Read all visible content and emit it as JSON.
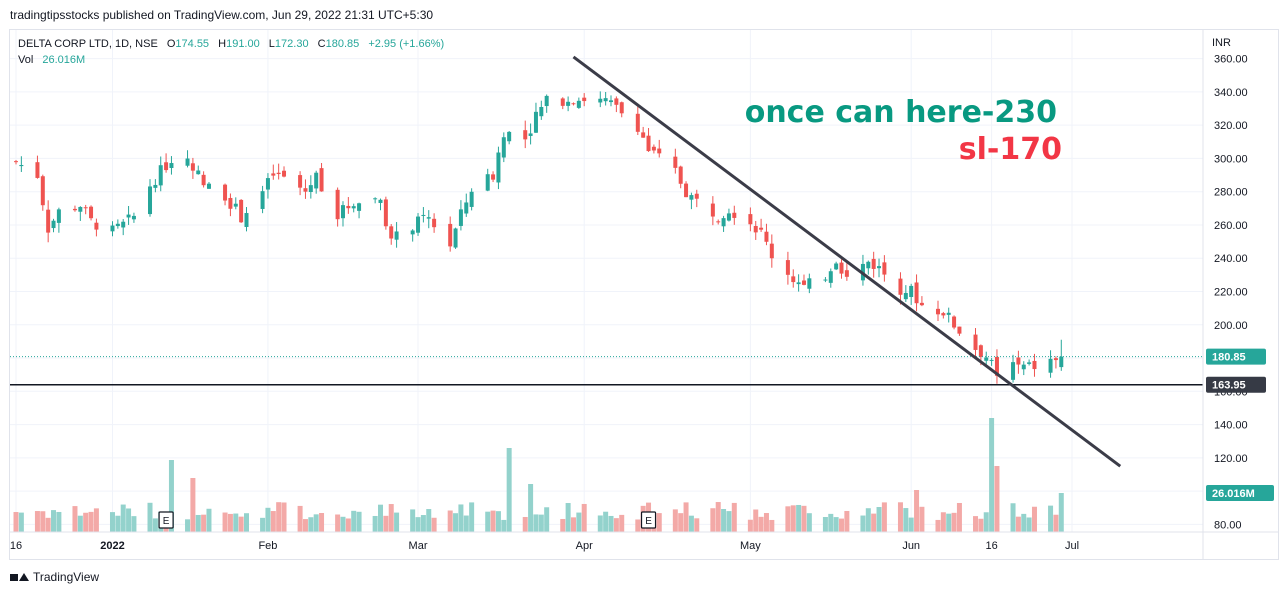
{
  "header": {
    "publisher_line": "tradingtipsstocks published on TradingView.com, Jun 29, 2022 21:31 UTC+5:30"
  },
  "legend": {
    "symbol": "DELTA CORP LTD, 1D, NSE",
    "o_label": "O",
    "o_value": "174.55",
    "h_label": "H",
    "h_value": "191.00",
    "l_label": "L",
    "l_value": "172.30",
    "c_label": "C",
    "c_value": "180.85",
    "change": "+2.95 (+1.66%)",
    "vol_label": "Vol",
    "vol_value": "26.016M"
  },
  "annotations": {
    "line1": "once can here-230",
    "line2": "sl-170"
  },
  "footer": {
    "brand": "TradingView"
  },
  "colors": {
    "up": "#26a69a",
    "down": "#ef5350",
    "vol_up": "#93d2cc",
    "vol_down": "#f3a9a7",
    "trendline": "#3b3c48",
    "support": "#131722",
    "grid": "#f0f3fa"
  },
  "chart_data": {
    "type": "candlestick",
    "currency": "INR",
    "y_ticks": [
      "80.00",
      "100.00",
      "120.00",
      "140.00",
      "160.00",
      "180.00",
      "200.00",
      "220.00",
      "240.00",
      "260.00",
      "280.00",
      "300.00",
      "320.00",
      "340.00",
      "360.00"
    ],
    "x_ticks": [
      "16",
      "2022",
      "Feb",
      "Mar",
      "Apr",
      "May",
      "Jun",
      "16",
      "Jul"
    ],
    "x_tick_dates": [
      "2021-12-16",
      "2022-01-03",
      "2022-02-01",
      "2022-03-01",
      "2022-04-01",
      "2022-05-02",
      "2022-06-01",
      "2022-06-16",
      "2022-07-01"
    ],
    "ylim": [
      70,
      370
    ],
    "last_price": {
      "label": "180.85",
      "value": 180.85
    },
    "support_level": {
      "label": "163.95",
      "value": 163.95
    },
    "volume_last_label": "26.016M",
    "earnings_markers": [
      {
        "label": "E",
        "date": "2022-01-13"
      },
      {
        "label": "E",
        "date": "2022-04-13"
      }
    ],
    "trendline": {
      "start": [
        "2022-03-30",
        361
      ],
      "end": [
        "2022-07-10",
        115
      ]
    },
    "close_series": [
      {
        "date": "2021-12-16",
        "close": 298
      },
      {
        "date": "2021-12-20",
        "close": 290
      },
      {
        "date": "2021-12-22",
        "close": 258
      },
      {
        "date": "2021-12-24",
        "close": 268
      },
      {
        "date": "2021-12-28",
        "close": 272
      },
      {
        "date": "2021-12-30",
        "close": 262
      },
      {
        "date": "2022-01-03",
        "close": 256
      },
      {
        "date": "2022-01-05",
        "close": 260
      },
      {
        "date": "2022-01-07",
        "close": 265
      },
      {
        "date": "2022-01-10",
        "close": 284
      },
      {
        "date": "2022-01-12",
        "close": 292
      },
      {
        "date": "2022-01-14",
        "close": 300
      },
      {
        "date": "2022-01-18",
        "close": 296
      },
      {
        "date": "2022-01-20",
        "close": 284
      },
      {
        "date": "2022-01-24",
        "close": 278
      },
      {
        "date": "2022-01-27",
        "close": 265
      },
      {
        "date": "2022-01-31",
        "close": 280
      },
      {
        "date": "2022-02-02",
        "close": 290
      },
      {
        "date": "2022-02-04",
        "close": 288
      },
      {
        "date": "2022-02-08",
        "close": 280
      },
      {
        "date": "2022-02-10",
        "close": 290
      },
      {
        "date": "2022-02-14",
        "close": 266
      },
      {
        "date": "2022-02-17",
        "close": 274
      },
      {
        "date": "2022-02-22",
        "close": 276
      },
      {
        "date": "2022-02-24",
        "close": 250
      },
      {
        "date": "2022-02-28",
        "close": 260
      },
      {
        "date": "2022-03-03",
        "close": 264
      },
      {
        "date": "2022-03-07",
        "close": 248
      },
      {
        "date": "2022-03-09",
        "close": 266
      },
      {
        "date": "2022-03-11",
        "close": 282
      },
      {
        "date": "2022-03-15",
        "close": 290
      },
      {
        "date": "2022-03-17",
        "close": 316
      },
      {
        "date": "2022-03-21",
        "close": 312
      },
      {
        "date": "2022-03-23",
        "close": 326
      },
      {
        "date": "2022-03-25",
        "close": 334
      },
      {
        "date": "2022-03-29",
        "close": 336
      },
      {
        "date": "2022-04-01",
        "close": 336
      },
      {
        "date": "2022-04-05",
        "close": 334
      },
      {
        "date": "2022-04-07",
        "close": 330
      },
      {
        "date": "2022-04-11",
        "close": 320
      },
      {
        "date": "2022-04-13",
        "close": 305
      },
      {
        "date": "2022-04-18",
        "close": 292
      },
      {
        "date": "2022-04-20",
        "close": 280
      },
      {
        "date": "2022-04-22",
        "close": 274
      },
      {
        "date": "2022-04-26",
        "close": 266
      },
      {
        "date": "2022-04-28",
        "close": 270
      },
      {
        "date": "2022-05-02",
        "close": 262
      },
      {
        "date": "2022-05-04",
        "close": 255
      },
      {
        "date": "2022-05-06",
        "close": 242
      },
      {
        "date": "2022-05-10",
        "close": 228
      },
      {
        "date": "2022-05-12",
        "close": 222
      },
      {
        "date": "2022-05-16",
        "close": 230
      },
      {
        "date": "2022-05-18",
        "close": 240
      },
      {
        "date": "2022-05-20",
        "close": 228
      },
      {
        "date": "2022-05-24",
        "close": 238
      },
      {
        "date": "2022-05-26",
        "close": 234
      },
      {
        "date": "2022-05-30",
        "close": 222
      },
      {
        "date": "2022-06-01",
        "close": 220
      },
      {
        "date": "2022-06-03",
        "close": 212
      },
      {
        "date": "2022-06-07",
        "close": 208
      },
      {
        "date": "2022-06-09",
        "close": 200
      },
      {
        "date": "2022-06-13",
        "close": 186
      },
      {
        "date": "2022-06-15",
        "close": 181
      },
      {
        "date": "2022-06-17",
        "close": 170
      },
      {
        "date": "2022-06-20",
        "close": 176
      },
      {
        "date": "2022-06-22",
        "close": 174
      },
      {
        "date": "2022-06-24",
        "close": 175
      },
      {
        "date": "2022-06-27",
        "close": 178
      },
      {
        "date": "2022-06-29",
        "close": 180.85
      }
    ],
    "volume_series": [
      {
        "date": "2022-01-14",
        "volume": 12
      },
      {
        "date": "2022-01-18",
        "volume": 9
      },
      {
        "date": "2022-03-18",
        "volume": 14
      },
      {
        "date": "2022-03-22",
        "volume": 8
      },
      {
        "date": "2022-06-02",
        "volume": 7
      },
      {
        "date": "2022-06-16",
        "volume": 19
      },
      {
        "date": "2022-06-17",
        "volume": 11
      },
      {
        "date": "2022-06-29",
        "volume": 6.5
      }
    ]
  }
}
